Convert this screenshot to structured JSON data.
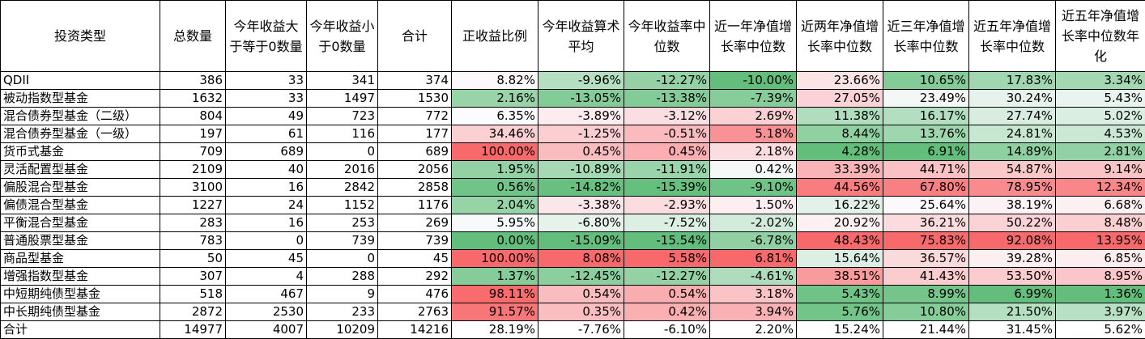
{
  "headers": [
    "投资类型",
    "总数量",
    "今年收益大于等于0数量",
    "今年收益小于0数量",
    "合计",
    "正收益比例",
    "今年收益算术平均",
    "今年收益率中位数",
    "近一年净值增长率中位数",
    "近两年净值增长率中位数",
    "近三年净值增长率中位数",
    "近五年净值增长率中位数",
    "近五年净值增长率中位数年化"
  ],
  "rows": [
    [
      "QDII",
      "386",
      "33",
      "341",
      "374",
      "8.82%",
      "-9.96%",
      "-12.27%",
      "-10.00%",
      "23.66%",
      "10.65%",
      "17.83%",
      "3.34%"
    ],
    [
      "被动指数型基金",
      "1632",
      "33",
      "1497",
      "1530",
      "2.16%",
      "-13.05%",
      "-13.38%",
      "-7.39%",
      "27.05%",
      "23.49%",
      "30.24%",
      "5.43%"
    ],
    [
      "混合债券型基金（二级）",
      "804",
      "49",
      "723",
      "772",
      "6.35%",
      "-3.89%",
      "-3.12%",
      "2.69%",
      "11.38%",
      "16.17%",
      "27.74%",
      "5.02%"
    ],
    [
      "混合债券型基金（一级）",
      "197",
      "61",
      "116",
      "177",
      "34.46%",
      "-1.25%",
      "-0.51%",
      "5.18%",
      "8.44%",
      "13.76%",
      "24.81%",
      "4.53%"
    ],
    [
      "货币式基金",
      "709",
      "689",
      "0",
      "689",
      "100.00%",
      "0.45%",
      "0.45%",
      "2.18%",
      "4.28%",
      "6.91%",
      "14.89%",
      "2.81%"
    ],
    [
      "灵活配置型基金",
      "2109",
      "40",
      "2016",
      "2056",
      "1.95%",
      "-10.89%",
      "-11.91%",
      "0.42%",
      "33.39%",
      "44.71%",
      "54.87%",
      "9.14%"
    ],
    [
      "偏股混合型基金",
      "3100",
      "16",
      "2842",
      "2858",
      "0.56%",
      "-14.82%",
      "-15.39%",
      "-9.10%",
      "44.56%",
      "67.80%",
      "78.95%",
      "12.34%"
    ],
    [
      "偏债混合型基金",
      "1227",
      "24",
      "1152",
      "1176",
      "2.04%",
      "-3.38%",
      "-2.93%",
      "1.50%",
      "16.22%",
      "25.64%",
      "38.19%",
      "6.68%"
    ],
    [
      "平衡混合型基金",
      "283",
      "16",
      "253",
      "269",
      "5.95%",
      "-6.80%",
      "-7.52%",
      "-2.02%",
      "20.92%",
      "36.21%",
      "50.22%",
      "8.48%"
    ],
    [
      "普通股票型基金",
      "783",
      "0",
      "739",
      "739",
      "0.00%",
      "-15.09%",
      "-15.54%",
      "-6.78%",
      "48.43%",
      "75.83%",
      "92.08%",
      "13.95%"
    ],
    [
      "商品型基金",
      "50",
      "45",
      "0",
      "45",
      "100.00%",
      "8.08%",
      "5.58%",
      "6.81%",
      "15.64%",
      "36.57%",
      "39.28%",
      "6.85%"
    ],
    [
      "增强指数型基金",
      "307",
      "4",
      "288",
      "292",
      "1.37%",
      "-12.45%",
      "-12.27%",
      "-4.61%",
      "38.51%",
      "41.43%",
      "53.50%",
      "8.95%"
    ],
    [
      "中短期纯债型基金",
      "518",
      "467",
      "9",
      "476",
      "98.11%",
      "0.54%",
      "0.54%",
      "3.18%",
      "5.43%",
      "8.99%",
      "6.99%",
      "1.36%"
    ],
    [
      "中长期纯债型基金",
      "2872",
      "2530",
      "233",
      "2763",
      "91.57%",
      "0.35%",
      "0.42%",
      "3.94%",
      "5.76%",
      "10.80%",
      "21.50%",
      "3.97%"
    ]
  ],
  "total": [
    "合计",
    "14977",
    "4007",
    "10209",
    "14216",
    "28.19%",
    "-7.76%",
    "-6.10%",
    "2.20%",
    "15.24%",
    "21.44%",
    "31.45%",
    "5.62%"
  ],
  "color_scale": {
    "low": "#63BE7B",
    "mid": "#FCFCFF",
    "high": "#F8696B"
  }
}
